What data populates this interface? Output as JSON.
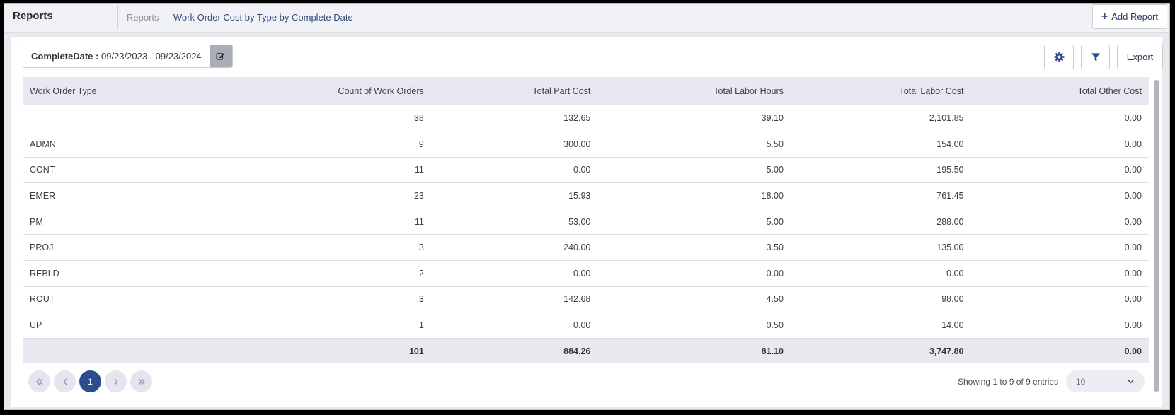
{
  "header": {
    "app_title": "Reports",
    "breadcrumb_root": "Reports",
    "breadcrumb_separator": "-",
    "breadcrumb_current": "Work Order Cost by Type by Complete Date",
    "add_report_label": "Add Report"
  },
  "filter": {
    "date_label": "CompleteDate :",
    "date_range": "09/23/2023 - 09/23/2024"
  },
  "toolbar": {
    "export_label": "Export"
  },
  "table": {
    "columns": [
      "Work Order Type",
      "Count of Work Orders",
      "Total Part Cost",
      "Total Labor Hours",
      "Total Labor Cost",
      "Total Other Cost"
    ],
    "rows": [
      [
        "",
        "38",
        "132.65",
        "39.10",
        "2,101.85",
        "0.00"
      ],
      [
        "ADMN",
        "9",
        "300.00",
        "5.50",
        "154.00",
        "0.00"
      ],
      [
        "CONT",
        "11",
        "0.00",
        "5.00",
        "195.50",
        "0.00"
      ],
      [
        "EMER",
        "23",
        "15.93",
        "18.00",
        "761.45",
        "0.00"
      ],
      [
        "PM",
        "11",
        "53.00",
        "5.00",
        "288.00",
        "0.00"
      ],
      [
        "PROJ",
        "3",
        "240.00",
        "3.50",
        "135.00",
        "0.00"
      ],
      [
        "REBLD",
        "2",
        "0.00",
        "0.00",
        "0.00",
        "0.00"
      ],
      [
        "ROUT",
        "3",
        "142.68",
        "4.50",
        "98.00",
        "0.00"
      ],
      [
        "UP",
        "1",
        "0.00",
        "0.50",
        "14.00",
        "0.00"
      ]
    ],
    "totals": [
      "",
      "101",
      "884.26",
      "81.10",
      "3,747.80",
      "0.00"
    ]
  },
  "pagination": {
    "current_page": "1",
    "entries_text": "Showing 1 to 9 of 9 entries",
    "page_size": "10"
  }
}
